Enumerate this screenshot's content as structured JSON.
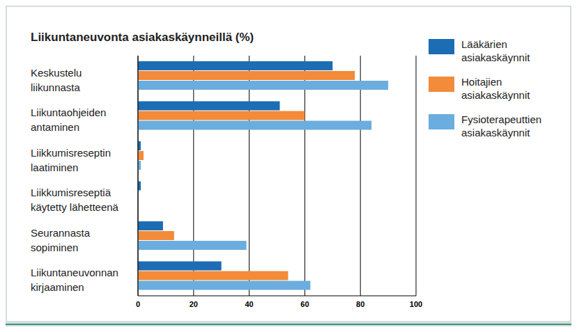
{
  "chart_data": {
    "type": "bar",
    "title": "Liikuntaneuvonta asiakaskäynneillä (%)",
    "orientation": "horizontal",
    "categories": [
      "Keskustelu liikunnasta",
      "Liikuntaohjeiden antaminen",
      "Liikkumisreseptin laatiminen",
      "Liikkumisreseptiä käytetty lähetteenä",
      "Seurannasta sopiminen",
      "Liikuntaneuvonnan kirjaaminen"
    ],
    "series": [
      {
        "name": "Lääkärien asiakaskäynnit",
        "color": "#1c6db3",
        "values": [
          70,
          51,
          1,
          1,
          9,
          30
        ]
      },
      {
        "name": "Hoitajien asiakaskäynnit",
        "color": "#f28b3a",
        "values": [
          78,
          60,
          2,
          0,
          13,
          54
        ]
      },
      {
        "name": "Fysioterapeuttien asiakaskäynnit",
        "color": "#6badde",
        "values": [
          90,
          84,
          1,
          0,
          39,
          62
        ]
      }
    ],
    "xlim": [
      0,
      100
    ],
    "xticks": [
      0,
      20,
      40,
      60,
      80,
      100
    ],
    "grid": true,
    "legend": "right"
  }
}
